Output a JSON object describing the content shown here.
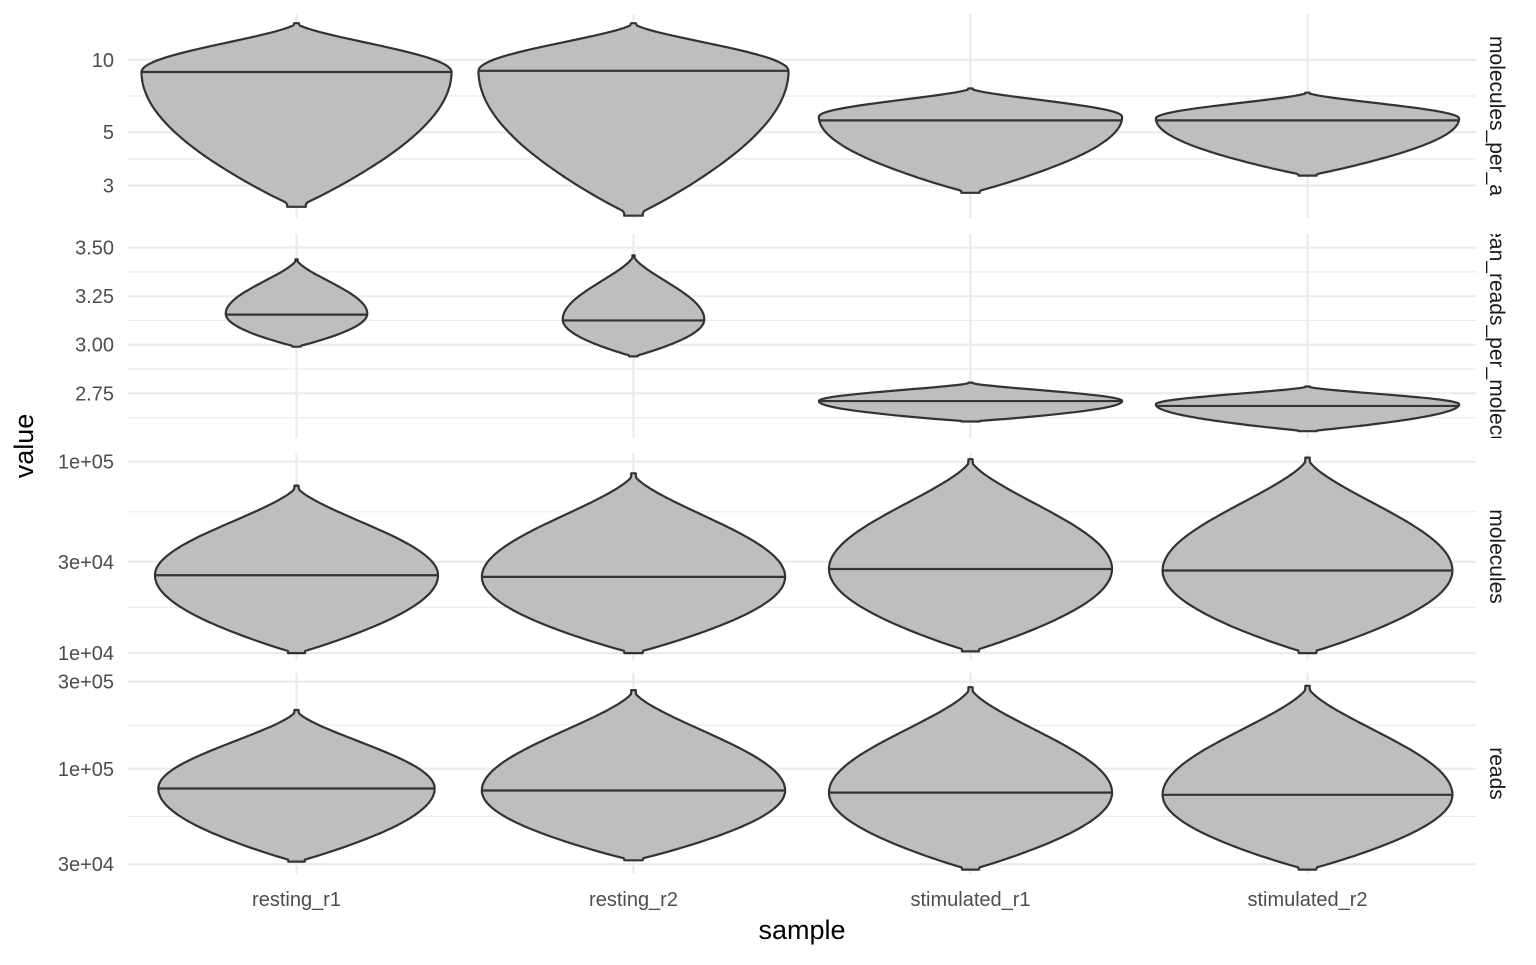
{
  "chart_data": {
    "type": "violin",
    "xlabel": "sample",
    "ylabel": "value",
    "categories": [
      "resting_r1",
      "resting_r2",
      "stimulated_r1",
      "stimulated_r2"
    ],
    "colors": {
      "fill": "#bebebe",
      "stroke": "#333333",
      "grid": "#ebebeb"
    },
    "grid": true,
    "facets": [
      {
        "strip": "molecules_per_a",
        "strip_visible": "…_molecules_per_a",
        "scale": "log",
        "ylim": [
          2.2,
          15.5
        ],
        "ticks": [
          {
            "value": 10,
            "label": "10"
          },
          {
            "value": 5,
            "label": "5"
          },
          {
            "value": 3,
            "label": "3"
          }
        ],
        "minor_ticks": [
          7.07,
          3.87
        ],
        "violins": [
          {
            "category": "resting_r1",
            "min": 2.45,
            "max": 14.2,
            "median": 8.9,
            "peak": 8.9,
            "shape": "top",
            "width": 0.92,
            "halfwidth_fraction": 0.55
          },
          {
            "category": "resting_r2",
            "min": 2.25,
            "max": 14.2,
            "median": 9.0,
            "peak": 9.0,
            "shape": "top",
            "width": 0.92,
            "halfwidth_fraction": 0.55
          },
          {
            "category": "stimulated_r1",
            "min": 2.8,
            "max": 7.6,
            "median": 5.6,
            "peak": 5.8,
            "shape": "mid",
            "width": 0.9,
            "halfwidth_fraction": 0.3
          },
          {
            "category": "stimulated_r2",
            "min": 3.3,
            "max": 7.3,
            "median": 5.6,
            "peak": 5.7,
            "shape": "mid",
            "width": 0.9,
            "halfwidth_fraction": 0.3
          }
        ]
      },
      {
        "strip": "mean_reads_per_molecule",
        "strip_visible": "…an_reads_per_mole…",
        "scale": "linear",
        "ylim": [
          2.52,
          3.57
        ],
        "ticks": [
          {
            "value": 3.5,
            "label": "3.50"
          },
          {
            "value": 3.25,
            "label": "3.25"
          },
          {
            "value": 3.0,
            "label": "3.00"
          },
          {
            "value": 2.75,
            "label": "2.75"
          }
        ],
        "minor_ticks": [
          3.375,
          3.125,
          2.875,
          2.625
        ],
        "violins": [
          {
            "category": "resting_r1",
            "min": 2.99,
            "max": 3.44,
            "median": 3.155,
            "peak": 3.16,
            "shape": "mid",
            "width": 0.42,
            "halfwidth_fraction": 0.4
          },
          {
            "category": "resting_r2",
            "min": 2.94,
            "max": 3.46,
            "median": 3.125,
            "peak": 3.13,
            "shape": "mid",
            "width": 0.42,
            "halfwidth_fraction": 0.4
          },
          {
            "category": "stimulated_r1",
            "min": 2.605,
            "max": 2.805,
            "median": 2.71,
            "peak": 2.71,
            "shape": "mid",
            "width": 0.9,
            "halfwidth_fraction": 0.3
          },
          {
            "category": "stimulated_r2",
            "min": 2.555,
            "max": 2.785,
            "median": 2.685,
            "peak": 2.693,
            "shape": "mid",
            "width": 0.9,
            "halfwidth_fraction": 0.3
          }
        ]
      },
      {
        "strip": "molecules",
        "strip_visible": "molecules",
        "scale": "log",
        "ylim": [
          9200,
          111000
        ],
        "ticks": [
          {
            "value": 100000,
            "label": "1e+05"
          },
          {
            "value": 30000,
            "label": "3e+04"
          },
          {
            "value": 10000,
            "label": "1e+04"
          }
        ],
        "minor_ticks": [
          54800,
          17300
        ],
        "violins": [
          {
            "category": "resting_r1",
            "min": 10000,
            "max": 75000,
            "median": 25500,
            "peak": 25500,
            "shape": "mid",
            "width": 0.84,
            "halfwidth_fraction": 0.3
          },
          {
            "category": "resting_r2",
            "min": 10000,
            "max": 87000,
            "median": 25000,
            "peak": 25000,
            "shape": "mid",
            "width": 0.9,
            "halfwidth_fraction": 0.3
          },
          {
            "category": "stimulated_r1",
            "min": 10200,
            "max": 103000,
            "median": 27500,
            "peak": 27500,
            "shape": "mid",
            "width": 0.84,
            "halfwidth_fraction": 0.3
          },
          {
            "category": "stimulated_r2",
            "min": 10000,
            "max": 105000,
            "median": 27000,
            "peak": 27000,
            "shape": "mid",
            "width": 0.86,
            "halfwidth_fraction": 0.3
          }
        ]
      },
      {
        "strip": "reads",
        "strip_visible": "reads",
        "scale": "log",
        "ylim": [
          26500,
          335000
        ],
        "ticks": [
          {
            "value": 300000,
            "label": "3e+05"
          },
          {
            "value": 100000,
            "label": "1e+05"
          },
          {
            "value": 30000,
            "label": "3e+04"
          }
        ],
        "minor_ticks": [
          173200,
          54800
        ],
        "violins": [
          {
            "category": "resting_r1",
            "min": 31000,
            "max": 210000,
            "median": 78000,
            "peak": 78000,
            "shape": "mid",
            "width": 0.82,
            "halfwidth_fraction": 0.3
          },
          {
            "category": "resting_r2",
            "min": 31500,
            "max": 270000,
            "median": 76000,
            "peak": 76000,
            "shape": "mid",
            "width": 0.9,
            "halfwidth_fraction": 0.3
          },
          {
            "category": "stimulated_r1",
            "min": 28000,
            "max": 280000,
            "median": 74000,
            "peak": 74000,
            "shape": "mid",
            "width": 0.84,
            "halfwidth_fraction": 0.3
          },
          {
            "category": "stimulated_r2",
            "min": 28000,
            "max": 285000,
            "median": 72000,
            "peak": 72000,
            "shape": "mid",
            "width": 0.86,
            "halfwidth_fraction": 0.3
          }
        ]
      }
    ]
  }
}
